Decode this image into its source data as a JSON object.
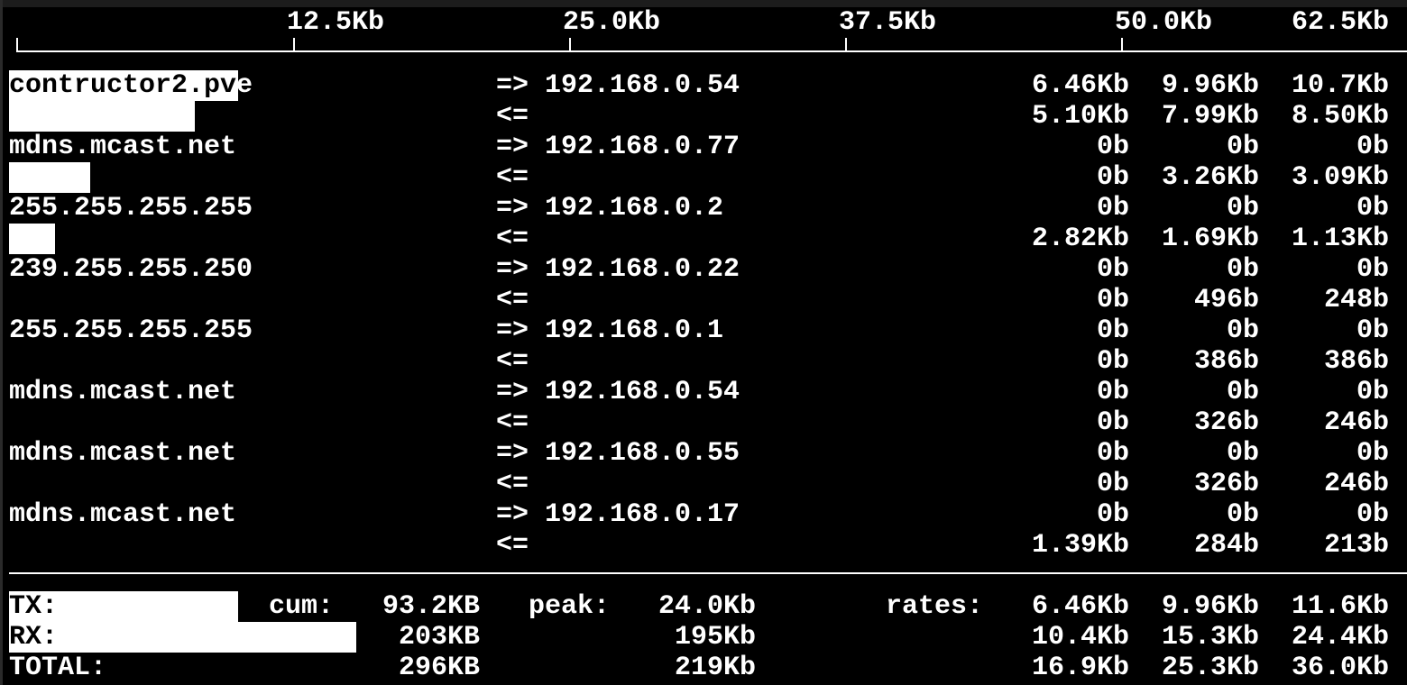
{
  "scale": {
    "max_kb": 62.5,
    "ticks": [
      "12.5Kb",
      "25.0Kb",
      "37.5Kb",
      "50.0Kb",
      "62.5Kb"
    ],
    "tick_values_kb": [
      12.5,
      25.0,
      37.5,
      50.0,
      62.5
    ]
  },
  "connections": [
    {
      "host": "contructor2.pve",
      "peer": "192.168.0.54",
      "tx": {
        "arrow": "=>",
        "rates": [
          "6.46Kb",
          "9.96Kb",
          "10.7Kb"
        ],
        "bar_kb": 9.96
      },
      "rx": {
        "arrow": "<=",
        "rates": [
          "5.10Kb",
          "7.99Kb",
          "8.50Kb"
        ],
        "bar_kb": 7.99
      }
    },
    {
      "host": "mdns.mcast.net",
      "peer": "192.168.0.77",
      "tx": {
        "arrow": "=>",
        "rates": [
          "0b",
          "0b",
          "0b"
        ],
        "bar_kb": 0
      },
      "rx": {
        "arrow": "<=",
        "rates": [
          "0b",
          "3.26Kb",
          "3.09Kb"
        ],
        "bar_kb": 3.26
      }
    },
    {
      "host": "255.255.255.255",
      "peer": "192.168.0.2",
      "tx": {
        "arrow": "=>",
        "rates": [
          "0b",
          "0b",
          "0b"
        ],
        "bar_kb": 0
      },
      "rx": {
        "arrow": "<=",
        "rates": [
          "2.82Kb",
          "1.69Kb",
          "1.13Kb"
        ],
        "bar_kb": 1.69
      }
    },
    {
      "host": "239.255.255.250",
      "peer": "192.168.0.22",
      "tx": {
        "arrow": "=>",
        "rates": [
          "0b",
          "0b",
          "0b"
        ],
        "bar_kb": 0
      },
      "rx": {
        "arrow": "<=",
        "rates": [
          "0b",
          "496b",
          "248b"
        ],
        "bar_kb": 0
      }
    },
    {
      "host": "255.255.255.255",
      "peer": "192.168.0.1",
      "tx": {
        "arrow": "=>",
        "rates": [
          "0b",
          "0b",
          "0b"
        ],
        "bar_kb": 0
      },
      "rx": {
        "arrow": "<=",
        "rates": [
          "0b",
          "386b",
          "386b"
        ],
        "bar_kb": 0
      }
    },
    {
      "host": "mdns.mcast.net",
      "peer": "192.168.0.54",
      "tx": {
        "arrow": "=>",
        "rates": [
          "0b",
          "0b",
          "0b"
        ],
        "bar_kb": 0
      },
      "rx": {
        "arrow": "<=",
        "rates": [
          "0b",
          "326b",
          "246b"
        ],
        "bar_kb": 0
      }
    },
    {
      "host": "mdns.mcast.net",
      "peer": "192.168.0.55",
      "tx": {
        "arrow": "=>",
        "rates": [
          "0b",
          "0b",
          "0b"
        ],
        "bar_kb": 0
      },
      "rx": {
        "arrow": "<=",
        "rates": [
          "0b",
          "326b",
          "246b"
        ],
        "bar_kb": 0
      }
    },
    {
      "host": "mdns.mcast.net",
      "peer": "192.168.0.17",
      "tx": {
        "arrow": "=>",
        "rates": [
          "0b",
          "0b",
          "0b"
        ],
        "bar_kb": 0
      },
      "rx": {
        "arrow": "<=",
        "rates": [
          "1.39Kb",
          "284b",
          "213b"
        ],
        "bar_kb": 0
      }
    }
  ],
  "totals": {
    "cum_label": "cum:",
    "peak_label": "peak:",
    "rates_label": "rates:",
    "rows": [
      {
        "label": "TX:",
        "cum": "93.2KB",
        "peak": "24.0Kb",
        "rates": [
          "6.46Kb",
          "9.96Kb",
          "11.6Kb"
        ],
        "bar_kb": 9.96
      },
      {
        "label": "RX:",
        "cum": "203KB",
        "peak": "195Kb",
        "rates": [
          "10.4Kb",
          "15.3Kb",
          "24.4Kb"
        ],
        "bar_kb": 15.3
      },
      {
        "label": "TOTAL:",
        "cum": "296KB",
        "peak": "219Kb",
        "rates": [
          "16.9Kb",
          "25.3Kb",
          "36.0Kb"
        ],
        "bar_kb": 0
      }
    ]
  }
}
